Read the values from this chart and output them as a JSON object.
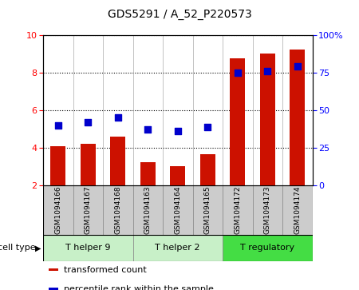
{
  "title": "GDS5291 / A_52_P220573",
  "samples": [
    "GSM1094166",
    "GSM1094167",
    "GSM1094168",
    "GSM1094163",
    "GSM1094164",
    "GSM1094165",
    "GSM1094172",
    "GSM1094173",
    "GSM1094174"
  ],
  "red_values": [
    4.1,
    4.2,
    4.6,
    3.25,
    3.05,
    3.65,
    8.75,
    9.0,
    9.2
  ],
  "blue_values": [
    40,
    42,
    45,
    37,
    36,
    39,
    75,
    76,
    79
  ],
  "cell_types": [
    {
      "label": "T helper 9",
      "start": 0,
      "end": 3,
      "color_light": "#c8f0c8",
      "color_dark": "#c8f0c8"
    },
    {
      "label": "T helper 2",
      "start": 3,
      "end": 6,
      "color_light": "#c8f0c8",
      "color_dark": "#c8f0c8"
    },
    {
      "label": "T regulatory",
      "start": 6,
      "end": 9,
      "color_light": "#44dd44",
      "color_dark": "#44dd44"
    }
  ],
  "ylim_left": [
    2,
    10
  ],
  "ylim_right": [
    0,
    100
  ],
  "yticks_left": [
    2,
    4,
    6,
    8,
    10
  ],
  "yticks_right": [
    0,
    25,
    50,
    75,
    100
  ],
  "bar_color": "#cc1100",
  "dot_color": "#0000cc",
  "bar_width": 0.5,
  "dot_size": 35,
  "grid_color": "black",
  "grid_style": "dotted",
  "cell_type_label": "cell type",
  "legend_items": [
    "transformed count",
    "percentile rank within the sample"
  ],
  "bar_bottom": 2,
  "sample_box_color": "#cccccc",
  "title_fontsize": 10,
  "axis_fontsize": 8,
  "legend_fontsize": 8
}
